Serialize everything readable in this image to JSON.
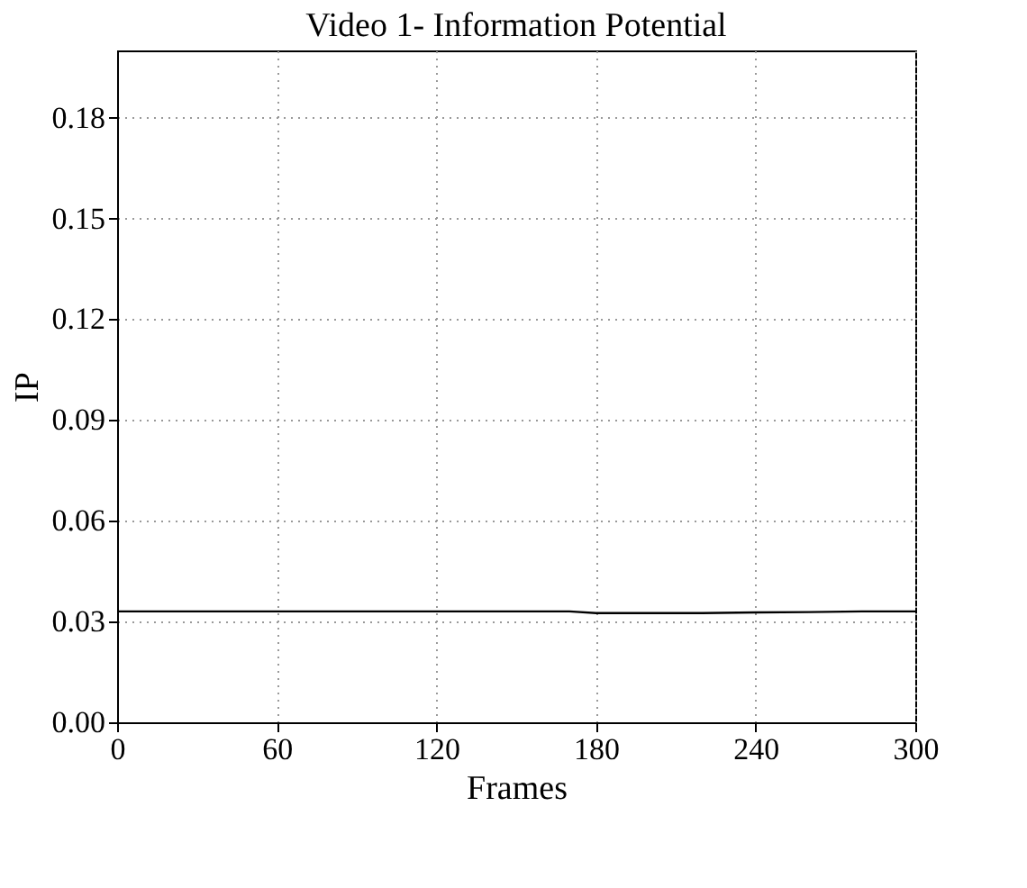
{
  "chart_data": {
    "type": "line",
    "title": "Video 1- Information Potential",
    "xlabel": "Frames",
    "ylabel": "IP",
    "x": [
      0,
      30,
      60,
      90,
      120,
      150,
      170,
      180,
      200,
      220,
      240,
      260,
      280,
      300
    ],
    "series": [
      {
        "color": "#000000",
        "values": [
          0.033,
          0.033,
          0.033,
          0.033,
          0.033,
          0.033,
          0.033,
          0.0325,
          0.0325,
          0.0325,
          0.0327,
          0.0328,
          0.033,
          0.033
        ]
      }
    ],
    "xlim": [
      0,
      300
    ],
    "xticks": [
      0,
      60,
      120,
      180,
      240,
      300
    ],
    "ylim": [
      0,
      0.2
    ],
    "yticks": [
      {
        "value": 0,
        "label": "0.00"
      },
      {
        "value": 0.03,
        "label": "0.03"
      },
      {
        "value": 0.06,
        "label": "0.06"
      },
      {
        "value": 0.09,
        "label": "0.09"
      },
      {
        "value": 0.12,
        "label": "0.12"
      },
      {
        "value": 0.15,
        "label": "0.15"
      },
      {
        "value": 0.18,
        "label": "0.18"
      }
    ],
    "grid": true,
    "line_style": "solid",
    "marker": "none"
  }
}
